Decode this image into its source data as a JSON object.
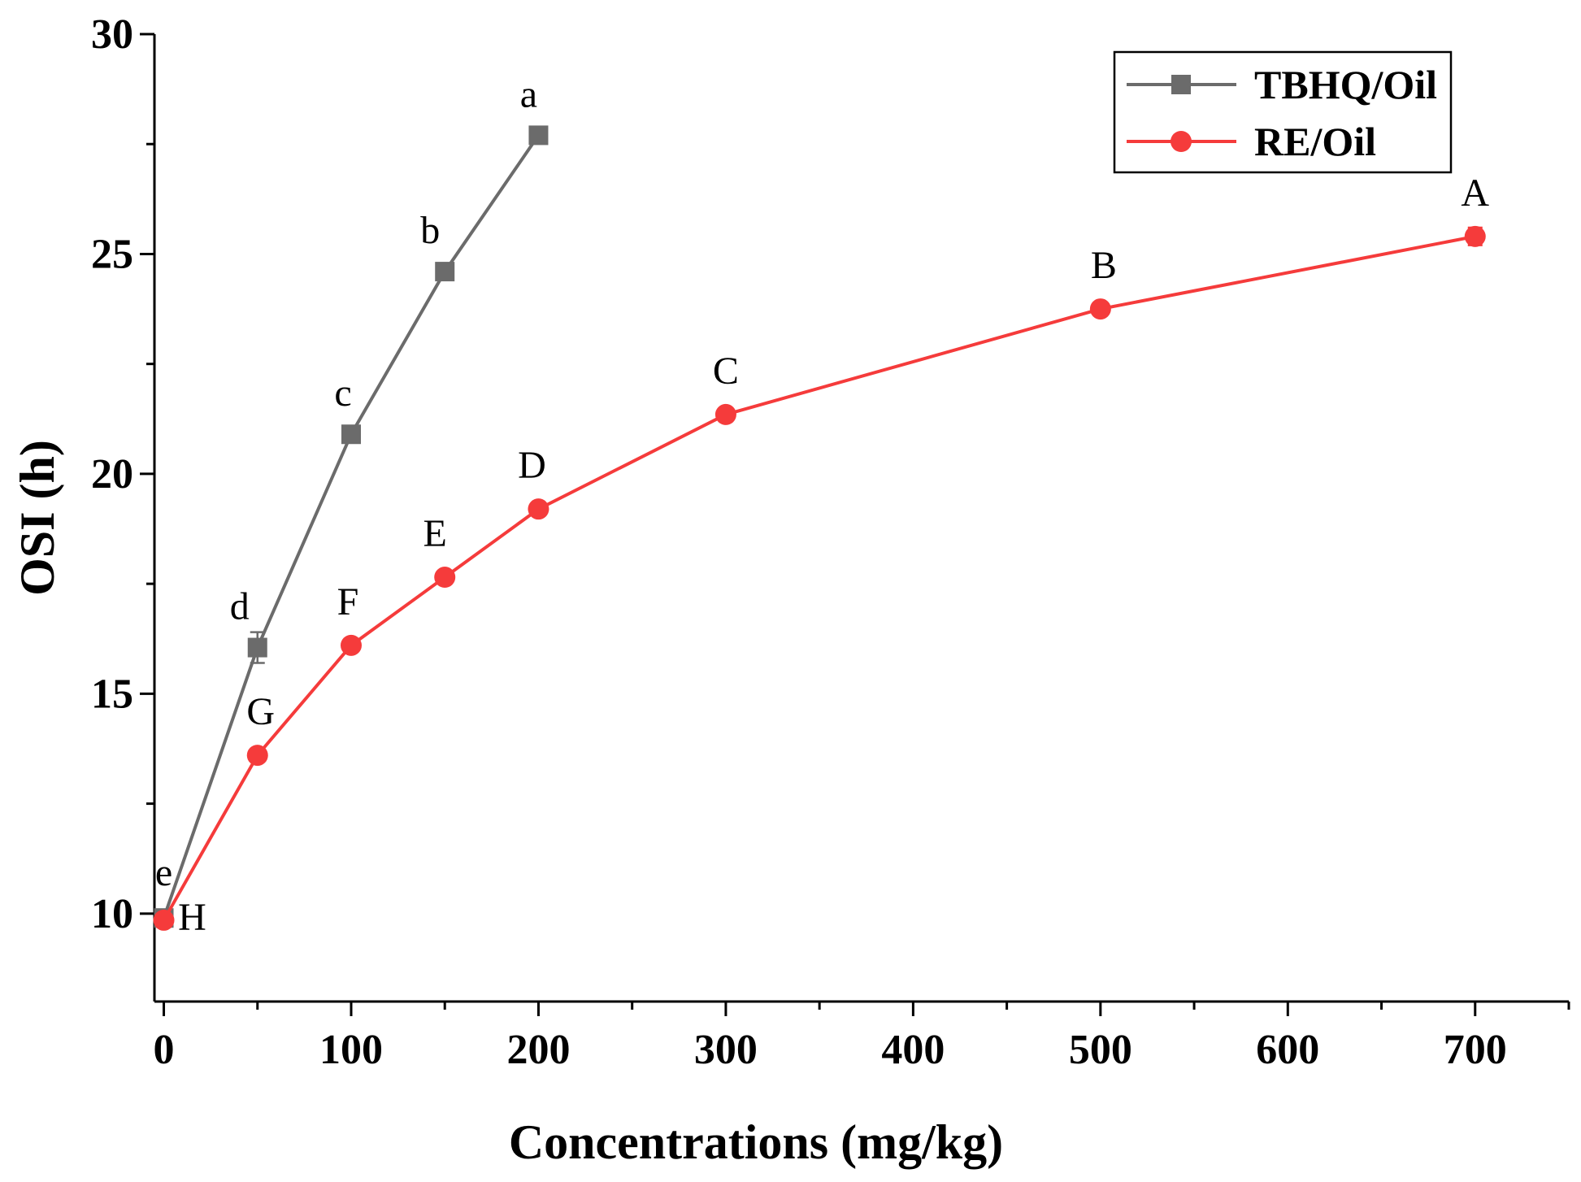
{
  "chart_data": {
    "type": "line",
    "title": "",
    "xlabel": "Concentrations (mg/kg)",
    "ylabel": "OSI (h)",
    "xlim": [
      -5,
      750
    ],
    "ylim": [
      8,
      30
    ],
    "xticks": [
      0,
      100,
      200,
      300,
      400,
      500,
      600,
      700
    ],
    "yticks": [
      10,
      15,
      20,
      25,
      30
    ],
    "legend_position": "top-right",
    "series": [
      {
        "name": "TBHQ/Oil",
        "color": "#6b6b6b",
        "marker": "square",
        "x": [
          0,
          50,
          100,
          150,
          200
        ],
        "values": [
          9.9,
          16.05,
          20.9,
          24.6,
          27.7
        ],
        "errors": [
          0.1,
          0.35,
          0.15,
          0.15,
          0.1
        ],
        "labels": [
          "e",
          "d",
          "c",
          "b",
          "a"
        ]
      },
      {
        "name": "RE/Oil",
        "color": "#f53b3b",
        "marker": "circle",
        "x": [
          0,
          50,
          100,
          150,
          200,
          300,
          500,
          700
        ],
        "values": [
          9.85,
          13.6,
          16.1,
          17.65,
          19.2,
          21.35,
          23.75,
          25.4
        ],
        "errors": [
          0.1,
          0.1,
          0.1,
          0.1,
          0.1,
          0.1,
          0.1,
          0.2
        ],
        "labels": [
          "H",
          "G",
          "F",
          "E",
          "D",
          "C",
          "B",
          "A"
        ]
      }
    ]
  }
}
